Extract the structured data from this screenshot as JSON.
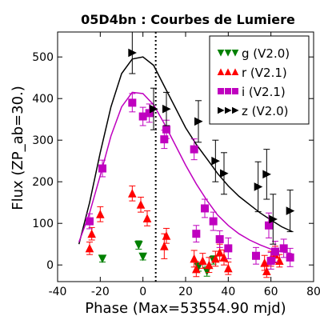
{
  "chart_data": {
    "type": "scatter",
    "title": "05D4bn : Courbes de Lumiere",
    "xlabel": "Phase (Max=53554.90 mjd)",
    "ylabel": "Flux (ZP_ab=30.)",
    "xlim": [
      -40,
      80
    ],
    "ylim": [
      -40,
      560
    ],
    "xticks": [
      "-40",
      "-20",
      "0",
      "20",
      "40",
      "60",
      "80"
    ],
    "yticks": [
      "0",
      "100",
      "200",
      "300",
      "400",
      "500"
    ],
    "vline_x": 6,
    "legend_position": "top-right",
    "series": [
      {
        "name": "g (V2.0)",
        "color": "#008000",
        "marker": "triangle-down",
        "points": [
          {
            "x": -19,
            "y": 15,
            "err": 8
          },
          {
            "x": -2,
            "y": 48,
            "err": 10
          },
          {
            "x": 0,
            "y": 20,
            "err": 8
          },
          {
            "x": 26,
            "y": -5,
            "err": 10
          },
          {
            "x": 30,
            "y": -15,
            "err": 12
          },
          {
            "x": 33,
            "y": 12,
            "err": 10
          }
        ]
      },
      {
        "name": "r (V2.1)",
        "color": "#ff0000",
        "marker": "triangle-up",
        "points": [
          {
            "x": -25,
            "y": 40,
            "err": 15
          },
          {
            "x": -24,
            "y": 75,
            "err": 15
          },
          {
            "x": -20,
            "y": 122,
            "err": 18
          },
          {
            "x": -5,
            "y": 172,
            "err": 18
          },
          {
            "x": -1,
            "y": 145,
            "err": 18
          },
          {
            "x": 2,
            "y": 112,
            "err": 18
          },
          {
            "x": 10,
            "y": 45,
            "err": 30
          },
          {
            "x": 11,
            "y": 70,
            "err": 18
          },
          {
            "x": 24,
            "y": 15,
            "err": 20
          },
          {
            "x": 25,
            "y": -10,
            "err": 18
          },
          {
            "x": 28,
            "y": 10,
            "err": 18
          },
          {
            "x": 31,
            "y": 0,
            "err": 18
          },
          {
            "x": 34,
            "y": 15,
            "err": 18
          },
          {
            "x": 36,
            "y": 30,
            "err": 20
          },
          {
            "x": 38,
            "y": 18,
            "err": 18
          },
          {
            "x": 40,
            "y": -8,
            "err": 15
          },
          {
            "x": 57,
            "y": 5,
            "err": 18
          },
          {
            "x": 58,
            "y": -15,
            "err": 15
          },
          {
            "x": 60,
            "y": 15,
            "err": 18
          },
          {
            "x": 62,
            "y": 25,
            "err": 20
          },
          {
            "x": 64,
            "y": 10,
            "err": 15
          }
        ]
      },
      {
        "name": "i (V2.1)",
        "color": "#bf00bf",
        "marker": "square",
        "points": [
          {
            "x": -25,
            "y": 105,
            "err": 18
          },
          {
            "x": -19,
            "y": 232,
            "err": 20
          },
          {
            "x": -5,
            "y": 390,
            "err": 22
          },
          {
            "x": 0,
            "y": 357,
            "err": 22
          },
          {
            "x": 3,
            "y": 365,
            "err": 22
          },
          {
            "x": 10,
            "y": 302,
            "err": 22
          },
          {
            "x": 11,
            "y": 326,
            "err": 22
          },
          {
            "x": 24,
            "y": 278,
            "err": 25
          },
          {
            "x": 25,
            "y": 75,
            "err": 20
          },
          {
            "x": 29,
            "y": 136,
            "err": 22
          },
          {
            "x": 33,
            "y": 105,
            "err": 22
          },
          {
            "x": 36,
            "y": 62,
            "err": 20
          },
          {
            "x": 40,
            "y": 40,
            "err": 25
          },
          {
            "x": 53,
            "y": 22,
            "err": 20
          },
          {
            "x": 59,
            "y": 95,
            "err": 30
          },
          {
            "x": 60,
            "y": 10,
            "err": 20
          },
          {
            "x": 62,
            "y": 32,
            "err": 25
          },
          {
            "x": 66,
            "y": 40,
            "err": 22
          },
          {
            "x": 69,
            "y": 18,
            "err": 22
          }
        ]
      },
      {
        "name": "z (V2.0)",
        "color": "#000000",
        "marker": "triangle-right",
        "points": [
          {
            "x": -5,
            "y": 510,
            "err": 50
          },
          {
            "x": 5,
            "y": 375,
            "err": 50
          },
          {
            "x": 11,
            "y": 375,
            "err": 40
          },
          {
            "x": 26,
            "y": 345,
            "err": 50
          },
          {
            "x": 34,
            "y": 250,
            "err": 50
          },
          {
            "x": 38,
            "y": 220,
            "err": 50
          },
          {
            "x": 54,
            "y": 188,
            "err": 60
          },
          {
            "x": 58,
            "y": 218,
            "err": 60
          },
          {
            "x": 61,
            "y": 110,
            "err": 60
          },
          {
            "x": 69,
            "y": 130,
            "err": 50
          }
        ]
      }
    ],
    "model_curves": [
      {
        "color": "#000000",
        "points": [
          [
            -30,
            50
          ],
          [
            -25,
            150
          ],
          [
            -20,
            270
          ],
          [
            -15,
            380
          ],
          [
            -10,
            460
          ],
          [
            -5,
            495
          ],
          [
            0,
            500
          ],
          [
            5,
            480
          ],
          [
            10,
            430
          ],
          [
            15,
            380
          ],
          [
            20,
            330
          ],
          [
            25,
            290
          ],
          [
            30,
            255
          ],
          [
            35,
            220
          ],
          [
            40,
            190
          ],
          [
            45,
            165
          ],
          [
            50,
            145
          ],
          [
            55,
            125
          ],
          [
            60,
            108
          ],
          [
            65,
            92
          ],
          [
            70,
            80
          ]
        ]
      },
      {
        "color": "#bf00bf",
        "points": [
          [
            -30,
            55
          ],
          [
            -25,
            125
          ],
          [
            -20,
            215
          ],
          [
            -15,
            310
          ],
          [
            -10,
            380
          ],
          [
            -5,
            415
          ],
          [
            0,
            412
          ],
          [
            5,
            385
          ],
          [
            10,
            340
          ],
          [
            15,
            290
          ],
          [
            20,
            240
          ],
          [
            25,
            195
          ],
          [
            30,
            155
          ],
          [
            35,
            120
          ],
          [
            40,
            95
          ],
          [
            45,
            75
          ],
          [
            50,
            60
          ],
          [
            55,
            48
          ],
          [
            60,
            38
          ],
          [
            65,
            32
          ],
          [
            70,
            27
          ]
        ]
      }
    ]
  }
}
